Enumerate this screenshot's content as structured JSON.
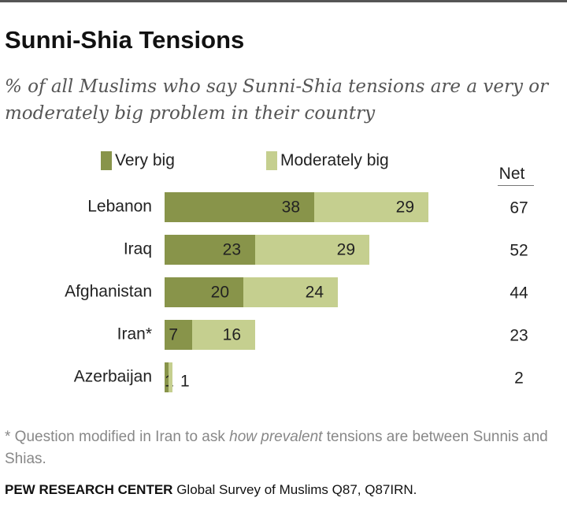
{
  "title": "Sunni-Shia Tensions",
  "subtitle": "% of all Muslims who say Sunni-Shia tensions are a very or moderately big problem in their country",
  "net_label": "Net",
  "colors": {
    "very_big": "#88944a",
    "moderately_big": "#c5cf8f"
  },
  "footnote": {
    "prefix": "* Question modified in Iran to ask ",
    "emphasis": "how prevalent",
    "suffix": " tensions are between Sunnis and Shias."
  },
  "source": {
    "org": "PEW RESEARCH CENTER",
    "rest": " Global Survey of Muslims Q87, Q87IRN."
  },
  "chart_data": {
    "type": "bar",
    "orientation": "horizontal",
    "stacked": true,
    "categories": [
      "Lebanon",
      "Iraq",
      "Afghanistan",
      "Iran*",
      "Azerbaijan"
    ],
    "series": [
      {
        "name": "Very big",
        "values": [
          38,
          23,
          20,
          7,
          1
        ]
      },
      {
        "name": "Moderately big",
        "values": [
          29,
          29,
          24,
          16,
          1
        ]
      }
    ],
    "net": [
      67,
      52,
      44,
      23,
      2
    ],
    "legend_position": "top",
    "grid": false
  }
}
